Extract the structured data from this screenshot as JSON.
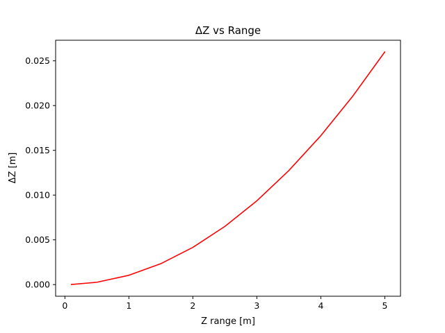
{
  "chart_data": {
    "type": "line",
    "title": "ΔZ vs Range",
    "xlabel": "Z range [m]",
    "ylabel": "ΔZ [m]",
    "xlim": [
      -0.145,
      5.245
    ],
    "ylim": [
      -0.0013,
      0.0273
    ],
    "xticks": [
      0,
      1,
      2,
      3,
      4,
      5
    ],
    "xtick_labels": [
      "0",
      "1",
      "2",
      "3",
      "4",
      "5"
    ],
    "yticks": [
      0.0,
      0.005,
      0.01,
      0.015,
      0.02,
      0.025
    ],
    "ytick_labels": [
      "0.000",
      "0.005",
      "0.010",
      "0.015",
      "0.020",
      "0.025"
    ],
    "grid": false,
    "series": [
      {
        "color": "#ff0000",
        "x": [
          0.1,
          0.5,
          1.0,
          1.5,
          2.0,
          2.5,
          3.0,
          3.5,
          4.0,
          4.5,
          5.0
        ],
        "y": [
          1e-05,
          0.00026,
          0.00104,
          0.00234,
          0.00416,
          0.0065,
          0.00936,
          0.01274,
          0.01664,
          0.02106,
          0.026
        ]
      }
    ]
  }
}
